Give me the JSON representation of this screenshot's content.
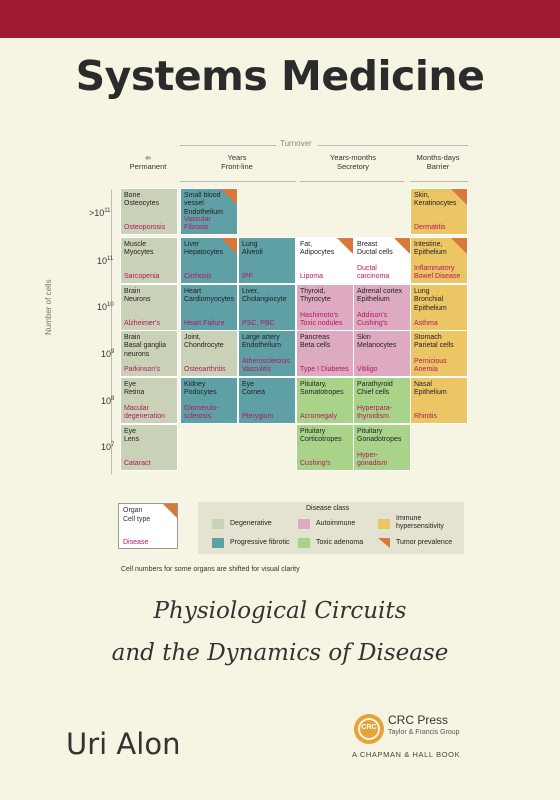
{
  "title": "Systems Medicine",
  "turnover_label": "Turnover",
  "columns": [
    {
      "top": "∞",
      "bottom": "Permanent"
    },
    {
      "top": "Years",
      "bottom": "Front-line"
    },
    {
      "top": "Years-months",
      "bottom": "Secretory"
    },
    {
      "top": "Months-days",
      "bottom": "Barrier"
    }
  ],
  "y_axis_label": "Number of cells",
  "size_labels": [
    "11",
    "11",
    "10",
    "9",
    "8",
    "7"
  ],
  "cells": [
    {
      "name": "Bone\nOsteocytes",
      "disease": "Osteoporosis",
      "cls": "degenerative",
      "tri": false
    },
    {
      "name": "Small blood\nvessel\nEndothelium",
      "disease": "Vascular Fibrosis",
      "cls": "fibrotic",
      "tri": true
    },
    {
      "name": "Skin,\nKeratinocytes",
      "disease": "Dermatitis",
      "cls": "immune",
      "tri": true
    },
    {
      "name": "Muscle\nMyocytes",
      "disease": "Sarcopenia",
      "cls": "degenerative",
      "tri": false
    },
    {
      "name": "Liver\nHepatocytes",
      "disease": "Cirrhosis",
      "cls": "fibrotic",
      "tri": true
    },
    {
      "name": "Lung\nAlveoli",
      "disease": "IPF",
      "cls": "fibrotic",
      "tri": false
    },
    {
      "name": "Fat,\nAdipocytes",
      "disease": "Lipoma",
      "cls": "white",
      "tri": true
    },
    {
      "name": "Breast\nDuctal cells",
      "disease": "Ductal\ncarcinoma",
      "cls": "white",
      "tri": true
    },
    {
      "name": "Intestine,\nEpithelium",
      "disease": "Inflammatory\nBowel Disease",
      "cls": "immune",
      "tri": true
    },
    {
      "name": "Brain\nNeurons",
      "disease": "Alzheimer's",
      "cls": "degenerative",
      "tri": false
    },
    {
      "name": "Heart\nCardiomyocytes",
      "disease": "Heart Failure",
      "cls": "fibrotic",
      "tri": false
    },
    {
      "name": "Liver,\nCholangiocyte",
      "disease": "PSC, PBC",
      "cls": "fibrotic",
      "tri": false
    },
    {
      "name": "Thyroid,\nThyrocyte",
      "disease": "Hashimoto's\nToxic nodules",
      "cls": "autoimmune",
      "tri": false
    },
    {
      "name": "Adrenal cortex\nEpithelium",
      "disease": "Addison's\nCushing's",
      "cls": "autoimmune",
      "tri": false
    },
    {
      "name": "Lung\nBronchial\nEpithelium",
      "disease": "Asthma",
      "cls": "immune",
      "tri": false
    },
    {
      "name": "Brain\nBasal ganglia\nneurons",
      "disease": "Parkinson's",
      "cls": "degenerative",
      "tri": false
    },
    {
      "name": "Joint,\nChondrocyte",
      "disease": "Osteoarthritis",
      "cls": "degenerative",
      "tri": false
    },
    {
      "name": "Large artery\nEndothelium",
      "disease": "Atherosclerosis\nVasculitis",
      "cls": "fibrotic",
      "tri": false
    },
    {
      "name": "Pancreas\nBeta cells",
      "disease": "Type I Diabetes",
      "cls": "autoimmune",
      "tri": false
    },
    {
      "name": "Skin\nMelanocytes",
      "disease": "Vitiligo",
      "cls": "autoimmune",
      "tri": false
    },
    {
      "name": "Stomach\nParietal cells",
      "disease": "Pernicious\nAnemia",
      "cls": "immune",
      "tri": false
    },
    {
      "name": "Eye\nRetina",
      "disease": "Macular\ndegeneration",
      "cls": "degenerative",
      "tri": false
    },
    {
      "name": "Kidney\nPodocytes",
      "disease": "Glomerulo-\nsclerosis",
      "cls": "fibrotic",
      "tri": false
    },
    {
      "name": "Eye\nCornea",
      "disease": "Pterygium",
      "cls": "fibrotic",
      "tri": false
    },
    {
      "name": "Pituitary,\nSomatotropes",
      "disease": "Acromegaly",
      "cls": "adenoma",
      "tri": false
    },
    {
      "name": "Parathyroid\nChief cells",
      "disease": "Hyperpara-\nthyroidism",
      "cls": "adenoma",
      "tri": false
    },
    {
      "name": "Nasal\nEpithelium",
      "disease": "Rhinitis",
      "cls": "immune",
      "tri": false
    },
    {
      "name": "Eye\nLens",
      "disease": "Cataract",
      "cls": "degenerative",
      "tri": false
    },
    {
      "name": "Pituitary\nCorticotropes",
      "disease": "Cushing's",
      "cls": "adenoma",
      "tri": false
    },
    {
      "name": "Pituitary\nGonadotropes",
      "disease": "Hyper-\ngonadism",
      "cls": "adenoma",
      "tri": false
    }
  ],
  "key": {
    "organ": "Organ",
    "cell_type": "Cell type",
    "disease": "Disease"
  },
  "legend": {
    "title": "Disease class",
    "degenerative": "Degenerative",
    "autoimmune": "Autoimmune",
    "immune": "Immune\nhypersensitivity",
    "fibrotic": "Progressive fibrotic",
    "adenoma": "Toxic adenoma",
    "tumor": "Tumor prevalence"
  },
  "colors": {
    "degenerative": "#c9d1b6",
    "fibrotic": "#5f9fa6",
    "autoimmune": "#deaac2",
    "immune": "#ecc565",
    "adenoma": "#a8d389",
    "tumor": "#d8783a",
    "brand": "#9e1b32"
  },
  "note": "Cell numbers for some organs are shifted for visual clarity",
  "subtitle_line1": "Physiological Circuits",
  "subtitle_line2": "and the Dynamics of Disease",
  "author": "Uri Alon",
  "publisher": {
    "name": "CRC Press",
    "group": "Taylor & Francis Group",
    "imprint": "A CHAPMAN & HALL BOOK",
    "logo_text": "CRC"
  }
}
